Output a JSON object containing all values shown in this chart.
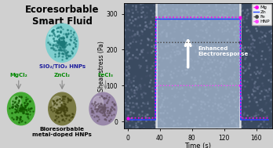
{
  "title_left": "Ecoresorbable\nSmart Fluid",
  "label_sio2": "SiO₂/TiO₂ HNPs",
  "label_mg": "MgCl₂",
  "label_zn": "ZnCl₂",
  "label_fe": "FeCl₃",
  "label_bio": "Bioresorbable\nmetal-doped HNPs",
  "ylabel": "Shear stress (Pa)",
  "xlabel": "Time (s)",
  "annotation": "Enhanced\nElectroresponse",
  "legend_labels": [
    "Mg",
    "Zn",
    "Fe",
    "HNP"
  ],
  "bg_left": "#e8e8e8",
  "bg_right": "#3a4a60",
  "bg_inner": "#aabdd4",
  "xticks": [
    0,
    40,
    80,
    120,
    160
  ],
  "yticks": [
    0,
    100,
    200,
    300
  ],
  "ylim": [
    -20,
    330
  ],
  "xlim": [
    -5,
    180
  ],
  "time_on": 35,
  "time_off": 140,
  "mg_on": 290,
  "mg_off": 10,
  "zn_on": 285,
  "zn_off": 5,
  "fe_on": 220,
  "fe_off": 5,
  "hnp_on": 100,
  "hnp_off": 5,
  "sphere_top_color": "#7ecece",
  "sphere_mg_color": "#44aa33",
  "sphere_zn_color": "#7a7a44",
  "sphere_fe_color": "#9988aa"
}
